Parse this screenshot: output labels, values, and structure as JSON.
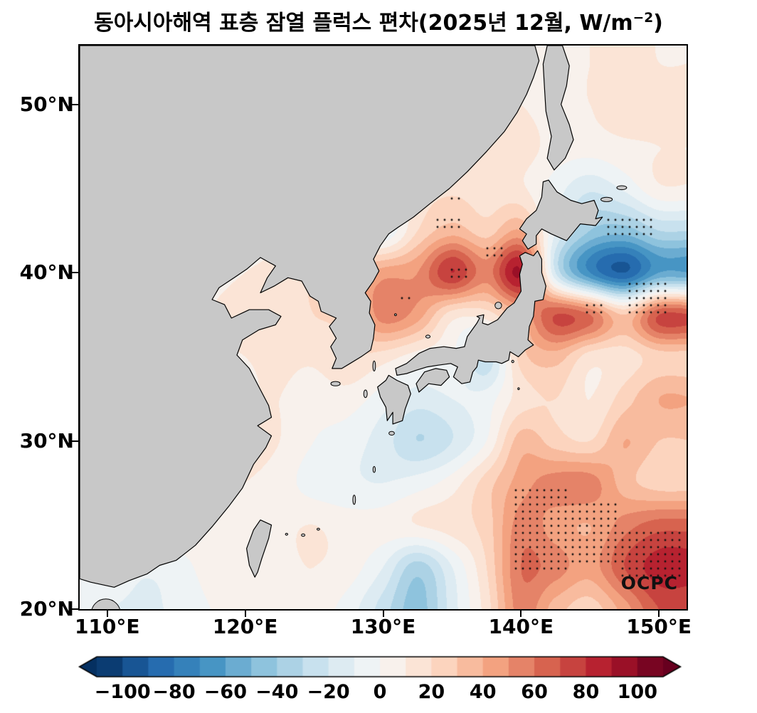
{
  "title": {
    "main": "동아시아해역 표층 잠열 플럭스 편차(2025년 12월, W/m",
    "sup": "−2",
    "end": ")"
  },
  "watermark": "OCPC",
  "axes": {
    "lat_ticks": [
      {
        "v": 50,
        "label": "50°N"
      },
      {
        "v": 40,
        "label": "40°N"
      },
      {
        "v": 30,
        "label": "30°N"
      },
      {
        "v": 20,
        "label": "20°N"
      }
    ],
    "lon_ticks": [
      {
        "v": 110,
        "label": "110°E"
      },
      {
        "v": 120,
        "label": "120°E"
      },
      {
        "v": 130,
        "label": "130°E"
      },
      {
        "v": 140,
        "label": "140°E"
      },
      {
        "v": 150,
        "label": "150°E"
      }
    ]
  },
  "map": {
    "lon_range": [
      108,
      152
    ],
    "lat_range": [
      20,
      53.5
    ],
    "land_color": "#c8c8c8",
    "coast_color": "#000000",
    "border_color": "#000000"
  },
  "colorbar": {
    "domain": [
      -110,
      110
    ],
    "step": 10,
    "anchors": [
      "#053061",
      "#2166ac",
      "#4393c3",
      "#92c5de",
      "#d1e5f0",
      "#f7f7f7",
      "#fddbc7",
      "#f4a582",
      "#d6604d",
      "#b2182b",
      "#67001f"
    ],
    "ticks": [
      {
        "v": -100,
        "label": "−100"
      },
      {
        "v": -80,
        "label": "−80"
      },
      {
        "v": -60,
        "label": "−60"
      },
      {
        "v": -40,
        "label": "−40"
      },
      {
        "v": -20,
        "label": "−20"
      },
      {
        "v": 0,
        "label": "0"
      },
      {
        "v": 20,
        "label": "20"
      },
      {
        "v": 40,
        "label": "40"
      },
      {
        "v": 60,
        "label": "60"
      },
      {
        "v": 80,
        "label": "80"
      },
      {
        "v": 100,
        "label": "100"
      }
    ]
  },
  "chart_data": {
    "type": "heatmap",
    "title": "동아시아해역 표층 잠열 플럭스 편차(2025년 12월, W/m⁻²)",
    "units": "W/m⁻²",
    "period_label": "2025년 12월",
    "xlabel_ticks": [
      "110°E",
      "120°E",
      "130°E",
      "140°E",
      "150°E"
    ],
    "ylabel_ticks": [
      "20°N",
      "30°N",
      "40°N",
      "50°N"
    ],
    "colorbar_ticks": [
      -100,
      -80,
      -60,
      -40,
      -20,
      0,
      20,
      40,
      60,
      80,
      100
    ],
    "lons": [
      110,
      112.5,
      115,
      117.5,
      120,
      122.5,
      125,
      127.5,
      130,
      132.5,
      135,
      137.5,
      140,
      142.5,
      145,
      147.5,
      150
    ],
    "lats": [
      52.5,
      50,
      47.5,
      45,
      42.5,
      40,
      37.5,
      35,
      32.5,
      30,
      27.5,
      25,
      22.5,
      20
    ],
    "values": [
      [
        0,
        0,
        0,
        0,
        0,
        0,
        0,
        0,
        0,
        0,
        2,
        6,
        6,
        8,
        10,
        12,
        10
      ],
      [
        0,
        0,
        0,
        0,
        0,
        0,
        0,
        0,
        0,
        2,
        6,
        12,
        10,
        6,
        10,
        14,
        12
      ],
      [
        0,
        0,
        0,
        0,
        0,
        0,
        0,
        0,
        4,
        8,
        12,
        16,
        15,
        6,
        5,
        8,
        10
      ],
      [
        0,
        0,
        0,
        0,
        0,
        0,
        4,
        8,
        10,
        15,
        18,
        15,
        12,
        -5,
        -18,
        -8,
        8
      ],
      [
        0,
        0,
        0,
        0,
        0,
        5,
        10,
        5,
        -10,
        20,
        35,
        25,
        40,
        -10,
        -40,
        -45,
        -30
      ],
      [
        0,
        0,
        0,
        5,
        10,
        15,
        20,
        30,
        45,
        50,
        80,
        55,
        90,
        -20,
        -70,
        -90,
        -60
      ],
      [
        0,
        0,
        0,
        10,
        15,
        15,
        20,
        25,
        55,
        45,
        15,
        15,
        40,
        70,
        60,
        30,
        70
      ],
      [
        0,
        0,
        5,
        8,
        10,
        12,
        12,
        20,
        15,
        5,
        0,
        -25,
        25,
        35,
        15,
        15,
        25
      ],
      [
        0,
        0,
        5,
        10,
        10,
        10,
        5,
        5,
        -5,
        -15,
        -10,
        -5,
        15,
        20,
        10,
        25,
        40
      ],
      [
        0,
        0,
        10,
        12,
        15,
        10,
        0,
        -5,
        -15,
        -30,
        -20,
        0,
        35,
        25,
        20,
        40,
        30
      ],
      [
        0,
        5,
        8,
        10,
        10,
        5,
        -5,
        -8,
        -10,
        -5,
        5,
        25,
        45,
        55,
        55,
        35,
        25
      ],
      [
        0,
        5,
        8,
        8,
        8,
        8,
        10,
        5,
        5,
        10,
        15,
        25,
        55,
        45,
        40,
        55,
        65
      ],
      [
        0,
        -8,
        -5,
        5,
        8,
        8,
        10,
        5,
        -10,
        -35,
        -10,
        20,
        60,
        55,
        45,
        70,
        85
      ],
      [
        -10,
        -12,
        -8,
        0,
        5,
        8,
        5,
        -5,
        -25,
        -45,
        -15,
        15,
        55,
        35,
        25,
        45,
        70
      ]
    ],
    "stipple_regions": [
      [
        134.6,
        39.5,
        136.5,
        40.4
      ],
      [
        133.8,
        42.7,
        135.8,
        43.5
      ],
      [
        134.8,
        44.1,
        135.8,
        44.8
      ],
      [
        137.4,
        40.9,
        139.0,
        41.6
      ],
      [
        131.2,
        38.2,
        131.9,
        38.7
      ],
      [
        146.2,
        42.2,
        149.8,
        43.2
      ],
      [
        147.4,
        37.4,
        150.6,
        39.4
      ],
      [
        144.6,
        37.6,
        146.2,
        38.4
      ],
      [
        139.6,
        22.4,
        143.6,
        27.2
      ],
      [
        143.6,
        22.8,
        147.2,
        26.6
      ],
      [
        147.3,
        21.7,
        152.0,
        24.6
      ]
    ]
  },
  "geo": {
    "mainland": [
      [
        108,
        53.5
      ],
      [
        141,
        53.5
      ],
      [
        141.3,
        52.6
      ],
      [
        140.9,
        51.6
      ],
      [
        140.4,
        50.6
      ],
      [
        139.7,
        49.5
      ],
      [
        138.8,
        48.4
      ],
      [
        137.5,
        47.2
      ],
      [
        136.1,
        46
      ],
      [
        134.8,
        45
      ],
      [
        133.4,
        44.1
      ],
      [
        132.2,
        43.3
      ],
      [
        131.1,
        42.7
      ],
      [
        130.4,
        42.3
      ],
      [
        129.8,
        41.6
      ],
      [
        129.3,
        40.8
      ],
      [
        129.7,
        40.1
      ],
      [
        129.3,
        39.5
      ],
      [
        128.7,
        38.8
      ],
      [
        129.1,
        38.3
      ],
      [
        129,
        37.6
      ],
      [
        129.4,
        36.9
      ],
      [
        129.3,
        36.1
      ],
      [
        129.1,
        35.4
      ],
      [
        128.4,
        35
      ],
      [
        127.6,
        34.6
      ],
      [
        127,
        34.3
      ],
      [
        126.3,
        34.3
      ],
      [
        126.6,
        34.9
      ],
      [
        126.2,
        35.6
      ],
      [
        126.6,
        36.1
      ],
      [
        126.1,
        36.8
      ],
      [
        126.6,
        37.3
      ],
      [
        125.5,
        37.7
      ],
      [
        125.3,
        38.3
      ],
      [
        124.7,
        38.6
      ],
      [
        124.1,
        39.5
      ],
      [
        123.1,
        39.7
      ],
      [
        122.1,
        39.2
      ],
      [
        121.1,
        38.8
      ],
      [
        121.6,
        39.7
      ],
      [
        122.2,
        40.4
      ],
      [
        121.1,
        40.9
      ],
      [
        120.1,
        40.2
      ],
      [
        119.2,
        39.7
      ],
      [
        118.1,
        39.1
      ],
      [
        117.6,
        38.4
      ],
      [
        118.5,
        38.1
      ],
      [
        119,
        37.3
      ],
      [
        120.3,
        37.8
      ],
      [
        121.7,
        37.8
      ],
      [
        122.6,
        37.4
      ],
      [
        122.2,
        36.9
      ],
      [
        121,
        36.6
      ],
      [
        119.8,
        36
      ],
      [
        119.4,
        35.1
      ],
      [
        120.3,
        34.3
      ],
      [
        121,
        33.2
      ],
      [
        121.7,
        32.1
      ],
      [
        121.9,
        31.4
      ],
      [
        120.9,
        30.9
      ],
      [
        121.9,
        30.3
      ],
      [
        121.5,
        29.6
      ],
      [
        120.6,
        28.6
      ],
      [
        119.8,
        27.2
      ],
      [
        118.8,
        26.1
      ],
      [
        117.6,
        24.9
      ],
      [
        116.4,
        23.8
      ],
      [
        115,
        22.9
      ],
      [
        113.8,
        22.6
      ],
      [
        112.9,
        22.1
      ],
      [
        111.6,
        21.7
      ],
      [
        110.5,
        21.3
      ],
      [
        108.8,
        21.6
      ],
      [
        108,
        21.8
      ]
    ],
    "sakhalin": [
      [
        141.9,
        53.5
      ],
      [
        143,
        53.5
      ],
      [
        143.5,
        52.3
      ],
      [
        143.3,
        51.1
      ],
      [
        142.9,
        50
      ],
      [
        143.5,
        48.8
      ],
      [
        143.8,
        47.9
      ],
      [
        143.2,
        46.8
      ],
      [
        142.4,
        46.1
      ],
      [
        141.9,
        46.8
      ],
      [
        142.2,
        48.1
      ],
      [
        141.8,
        49.6
      ],
      [
        141.7,
        51
      ],
      [
        141.6,
        52.4
      ]
    ],
    "hokkaido": [
      [
        140.1,
        41.9
      ],
      [
        140.5,
        41.4
      ],
      [
        141.1,
        41.7
      ],
      [
        141.1,
        42.2
      ],
      [
        141.5,
        42.6
      ],
      [
        142.2,
        42.3
      ],
      [
        143.3,
        41.9
      ],
      [
        144.3,
        42.9
      ],
      [
        145.4,
        42.8
      ],
      [
        145.9,
        43.3
      ],
      [
        145.4,
        43.2
      ],
      [
        145.6,
        43.7
      ],
      [
        145.3,
        44.3
      ],
      [
        144.4,
        44.1
      ],
      [
        143.6,
        44.3
      ],
      [
        142.6,
        44.8
      ],
      [
        142,
        45.5
      ],
      [
        141.6,
        45.4
      ],
      [
        141.5,
        44.5
      ],
      [
        141.1,
        43.7
      ],
      [
        140.4,
        43.2
      ],
      [
        139.9,
        42.6
      ],
      [
        140.4,
        42.3
      ]
    ],
    "honshu": [
      [
        140.3,
        41.2
      ],
      [
        140.9,
        41
      ],
      [
        141.2,
        41.3
      ],
      [
        141.5,
        40.8
      ],
      [
        141.5,
        40
      ],
      [
        141.8,
        39.2
      ],
      [
        141.6,
        38.4
      ],
      [
        141,
        38.3
      ],
      [
        140.9,
        37.4
      ],
      [
        140.6,
        36.8
      ],
      [
        140.5,
        36
      ],
      [
        140.9,
        35.7
      ],
      [
        140.3,
        35.4
      ],
      [
        139.8,
        35
      ],
      [
        139.2,
        35.3
      ],
      [
        139.1,
        34.8
      ],
      [
        138.6,
        34.6
      ],
      [
        138.2,
        34.7
      ],
      [
        137.4,
        34.7
      ],
      [
        136.9,
        34.8
      ],
      [
        136.8,
        34.4
      ],
      [
        136.5,
        34.1
      ],
      [
        136.3,
        33.5
      ],
      [
        135.7,
        33.4
      ],
      [
        135.1,
        33.8
      ],
      [
        135.4,
        34.4
      ],
      [
        134.9,
        34.6
      ],
      [
        134,
        34.5
      ],
      [
        133.2,
        34.4
      ],
      [
        132.4,
        34.2
      ],
      [
        131.7,
        34
      ],
      [
        131,
        33.9
      ],
      [
        130.9,
        34.3
      ],
      [
        131.7,
        34.6
      ],
      [
        132.6,
        35.2
      ],
      [
        133.4,
        35.5
      ],
      [
        134.4,
        35.6
      ],
      [
        135.3,
        35.5
      ],
      [
        135.9,
        35.6
      ],
      [
        136.1,
        36.2
      ],
      [
        136.8,
        37
      ],
      [
        137,
        37.3
      ],
      [
        136.8,
        37.4
      ],
      [
        137.3,
        37.5
      ],
      [
        137.2,
        37
      ],
      [
        137.6,
        36.9
      ],
      [
        138.3,
        37.2
      ],
      [
        139,
        37.9
      ],
      [
        139.5,
        38.2
      ],
      [
        140,
        38.9
      ],
      [
        139.9,
        39.9
      ],
      [
        140.1,
        40.5
      ],
      [
        139.9,
        41
      ]
    ],
    "shikoku": [
      [
        132.6,
        32.9
      ],
      [
        133.3,
        33.4
      ],
      [
        134.2,
        33.3
      ],
      [
        134.8,
        33.8
      ],
      [
        134.6,
        34.2
      ],
      [
        133.8,
        34.3
      ],
      [
        133,
        34.1
      ],
      [
        132.4,
        33.4
      ]
    ],
    "kyushu": [
      [
        130.4,
        33.9
      ],
      [
        131,
        33.6
      ],
      [
        131.8,
        33.3
      ],
      [
        132,
        32.8
      ],
      [
        131.6,
        31.9
      ],
      [
        131.4,
        31.2
      ],
      [
        130.7,
        31
      ],
      [
        130.7,
        31.7
      ],
      [
        130.3,
        31.2
      ],
      [
        130.2,
        32
      ],
      [
        129.8,
        32.6
      ],
      [
        129.6,
        33.2
      ],
      [
        130.2,
        33.6
      ]
    ],
    "taiwan": [
      [
        121.1,
        25.3
      ],
      [
        121.9,
        25
      ],
      [
        121.7,
        24.2
      ],
      [
        121.2,
        23
      ],
      [
        120.9,
        22.2
      ],
      [
        120.7,
        21.9
      ],
      [
        120.3,
        22.6
      ],
      [
        120.1,
        23.6
      ],
      [
        120.6,
        24.7
      ]
    ],
    "islands": [
      [
        126.55,
        33.4,
        0.34,
        0.13
      ],
      [
        129.35,
        34.45,
        0.1,
        0.3
      ],
      [
        138.35,
        38.05,
        0.24,
        0.2
      ],
      [
        133.25,
        36.2,
        0.16,
        0.09
      ],
      [
        130.9,
        37.5,
        0.07,
        0.06
      ],
      [
        130.62,
        30.45,
        0.2,
        0.11
      ],
      [
        129.35,
        28.3,
        0.09,
        0.18
      ],
      [
        127.9,
        26.5,
        0.1,
        0.28
      ],
      [
        128.72,
        32.8,
        0.13,
        0.23
      ],
      [
        139.4,
        34.72,
        0.08,
        0.07
      ],
      [
        139.82,
        33.1,
        0.06,
        0.06
      ],
      [
        146.2,
        44.35,
        0.42,
        0.13
      ],
      [
        147.3,
        45.05,
        0.36,
        0.12
      ],
      [
        109.9,
        19.75,
        1.05,
        0.85
      ],
      [
        124.2,
        24.4,
        0.13,
        0.07
      ],
      [
        125.3,
        24.75,
        0.1,
        0.06
      ],
      [
        123.0,
        24.45,
        0.09,
        0.06
      ]
    ]
  }
}
